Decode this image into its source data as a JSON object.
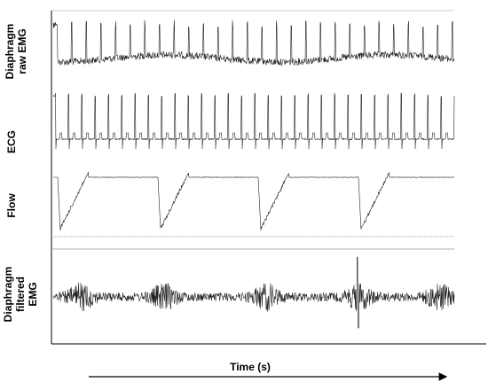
{
  "panels": [
    {
      "label_lines": [
        "Diaphragm",
        "raw EMG"
      ]
    },
    {
      "label_lines": [
        "ECG"
      ]
    },
    {
      "label_lines": [
        "Flow"
      ]
    },
    {
      "label_lines": [
        "Diaphragm",
        "filtered",
        "EMG"
      ]
    }
  ],
  "x_axis": {
    "label": "Time (s)"
  }
}
